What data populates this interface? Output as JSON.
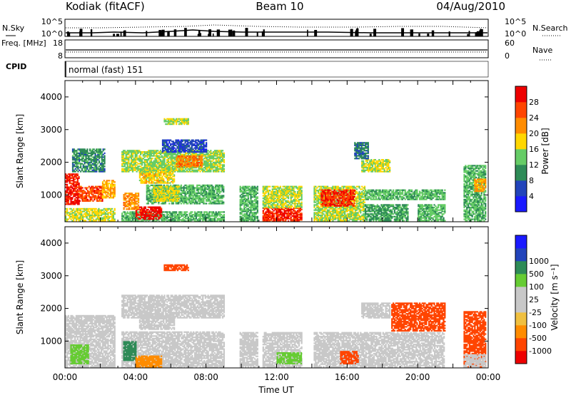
{
  "header": {
    "station": "Kodiak (fitACF)",
    "beam": "Beam 10",
    "date": "04/Aug/2010"
  },
  "colors": {
    "power_scale": [
      "#1a1aff",
      "#2244bb",
      "#2e8b57",
      "#66cc66",
      "#ffd700",
      "#ff8c00",
      "#ff4500",
      "#ee0000"
    ],
    "velocity_scale": [
      "#ee0000",
      "#ff4500",
      "#ff8c00",
      "#f0c040",
      "#c8c8c8",
      "#c8c8c8",
      "#66cc33",
      "#2e8b57",
      "#2244bb",
      "#1a1aff"
    ],
    "ground_scatter": "#bbbbbb"
  },
  "chart_data": [
    {
      "type": "line",
      "panel": "noise",
      "left_label": "N.Sky",
      "right_label": "N.Search",
      "left_ticks": [
        "10^5",
        "10^0"
      ],
      "right_ticks": [
        "10^5",
        "10^0"
      ],
      "x": [
        0,
        24
      ],
      "xlim": [
        0,
        24
      ]
    },
    {
      "type": "line",
      "panel": "frequency",
      "left_label": "Freq. [MHz]",
      "right_label": "Nave",
      "left_ticks": [
        "18",
        "8"
      ],
      "right_ticks": [
        "60",
        "0"
      ],
      "ylim_left": [
        8,
        18
      ],
      "ylim_right": [
        0,
        60
      ],
      "xlim": [
        0,
        24
      ]
    },
    {
      "type": "table",
      "panel": "cpid",
      "label": "CPID",
      "program_text": "normal (fast) 151"
    },
    {
      "type": "heatmap",
      "panel": "power",
      "ylabel": "Slant Range [km]",
      "yticks": [
        "1000",
        "2000",
        "3000",
        "4000"
      ],
      "ylim": [
        180,
        4500
      ],
      "xlim": [
        0,
        24
      ],
      "colorbar_title": "Power [dB]",
      "colorbar_ticks": [
        "4",
        "8",
        "12",
        "16",
        "20",
        "24",
        "28"
      ],
      "colorbar_range": [
        0,
        32
      ],
      "regions": [
        {
          "t": [
            0.0,
            0.8
          ],
          "r": [
            700,
            1650
          ],
          "v": 29
        },
        {
          "t": [
            0.8,
            2.1
          ],
          "r": [
            800,
            1250
          ],
          "v": 26
        },
        {
          "t": [
            2.1,
            2.8
          ],
          "r": [
            900,
            1450
          ],
          "v": 20
        },
        {
          "t": [
            0.0,
            2.8
          ],
          "r": [
            200,
            600
          ],
          "v": 17
        },
        {
          "t": [
            0.4,
            2.2
          ],
          "r": [
            1700,
            2400
          ],
          "v": 10
        },
        {
          "t": [
            3.2,
            9.0
          ],
          "r": [
            180,
            480
          ],
          "v": 13
        },
        {
          "t": [
            4.0,
            5.5
          ],
          "r": [
            250,
            620
          ],
          "v": 30
        },
        {
          "t": [
            3.3,
            4.2
          ],
          "r": [
            550,
            1050
          ],
          "v": 22
        },
        {
          "t": [
            4.6,
            9.0
          ],
          "r": [
            720,
            1300
          ],
          "v": 13
        },
        {
          "t": [
            5.0,
            6.5
          ],
          "r": [
            800,
            1250
          ],
          "v": 17
        },
        {
          "t": [
            4.2,
            6.2
          ],
          "r": [
            1350,
            1800
          ],
          "v": 18
        },
        {
          "t": [
            3.2,
            9.0
          ],
          "r": [
            1700,
            2350
          ],
          "v": 15
        },
        {
          "t": [
            6.3,
            7.8
          ],
          "r": [
            1850,
            2200
          ],
          "v": 23
        },
        {
          "t": [
            5.5,
            8.0
          ],
          "r": [
            2300,
            2700
          ],
          "v": 6
        },
        {
          "t": [
            5.6,
            7.0
          ],
          "r": [
            3150,
            3350
          ],
          "v": 16
        },
        {
          "t": [
            9.9,
            10.9
          ],
          "r": [
            200,
            1250
          ],
          "v": 13
        },
        {
          "t": [
            11.2,
            13.4
          ],
          "r": [
            180,
            600
          ],
          "v": 28
        },
        {
          "t": [
            11.2,
            13.4
          ],
          "r": [
            600,
            1250
          ],
          "v": 16
        },
        {
          "t": [
            14.1,
            17.0
          ],
          "r": [
            200,
            1250
          ],
          "v": 16
        },
        {
          "t": [
            14.5,
            16.4
          ],
          "r": [
            650,
            1150
          ],
          "v": 28
        },
        {
          "t": [
            17.0,
            19.4
          ],
          "r": [
            200,
            700
          ],
          "v": 11
        },
        {
          "t": [
            17.0,
            21.5
          ],
          "r": [
            850,
            1150
          ],
          "v": 13
        },
        {
          "t": [
            16.8,
            18.4
          ],
          "r": [
            1700,
            2100
          ],
          "v": 16
        },
        {
          "t": [
            16.4,
            17.2
          ],
          "r": [
            2100,
            2600
          ],
          "v": 9
        },
        {
          "t": [
            20.0,
            21.5
          ],
          "r": [
            200,
            700
          ],
          "v": 13
        },
        {
          "t": [
            22.6,
            23.8
          ],
          "r": [
            200,
            1900
          ],
          "v": 13
        },
        {
          "t": [
            23.2,
            23.8
          ],
          "r": [
            1100,
            1500
          ],
          "v": 21
        }
      ]
    },
    {
      "type": "heatmap",
      "panel": "velocity",
      "ylabel": "Slant Range [km]",
      "yticks": [
        "1000",
        "2000",
        "3000",
        "4000"
      ],
      "ylim": [
        180,
        4500
      ],
      "xlim": [
        0,
        24
      ],
      "xticks": [
        "00:00",
        "04:00",
        "08:00",
        "12:00",
        "16:00",
        "20:00",
        "00:00"
      ],
      "xlabel": "Time UT",
      "colorbar_title": "Velocity [m s⁻¹]",
      "colorbar_ticks": [
        "-1000",
        "-500",
        "-100",
        "-25",
        "25",
        "100",
        "500",
        "1000"
      ],
      "regions": [
        {
          "t": [
            0.0,
            2.8
          ],
          "r": [
            200,
            1800
          ],
          "v": 0
        },
        {
          "t": [
            0.3,
            1.3
          ],
          "r": [
            300,
            900
          ],
          "v": 90
        },
        {
          "t": [
            3.2,
            9.0
          ],
          "r": [
            180,
            1300
          ],
          "v": 0
        },
        {
          "t": [
            3.3,
            4.0
          ],
          "r": [
            400,
            1000
          ],
          "v": 120
        },
        {
          "t": [
            4.0,
            5.5
          ],
          "r": [
            200,
            550
          ],
          "v": -60
        },
        {
          "t": [
            4.2,
            6.2
          ],
          "r": [
            1350,
            1800
          ],
          "v": 0
        },
        {
          "t": [
            3.2,
            9.0
          ],
          "r": [
            1700,
            2400
          ],
          "v": 0
        },
        {
          "t": [
            5.6,
            7.0
          ],
          "r": [
            3150,
            3350
          ],
          "v": -150
        },
        {
          "t": [
            9.9,
            10.9
          ],
          "r": [
            200,
            1250
          ],
          "v": 0
        },
        {
          "t": [
            11.2,
            13.4
          ],
          "r": [
            200,
            1250
          ],
          "v": 0
        },
        {
          "t": [
            12.0,
            13.4
          ],
          "r": [
            300,
            650
          ],
          "v": 80
        },
        {
          "t": [
            14.1,
            21.5
          ],
          "r": [
            200,
            1250
          ],
          "v": 0
        },
        {
          "t": [
            15.6,
            16.6
          ],
          "r": [
            300,
            700
          ],
          "v": -150
        },
        {
          "t": [
            16.8,
            18.4
          ],
          "r": [
            1700,
            2150
          ],
          "v": 0
        },
        {
          "t": [
            18.5,
            21.5
          ],
          "r": [
            1300,
            2150
          ],
          "v": -250
        },
        {
          "t": [
            22.6,
            23.8
          ],
          "r": [
            200,
            1900
          ],
          "v": -250
        },
        {
          "t": [
            22.6,
            23.8
          ],
          "r": [
            200,
            600
          ],
          "v": 0
        }
      ]
    }
  ]
}
